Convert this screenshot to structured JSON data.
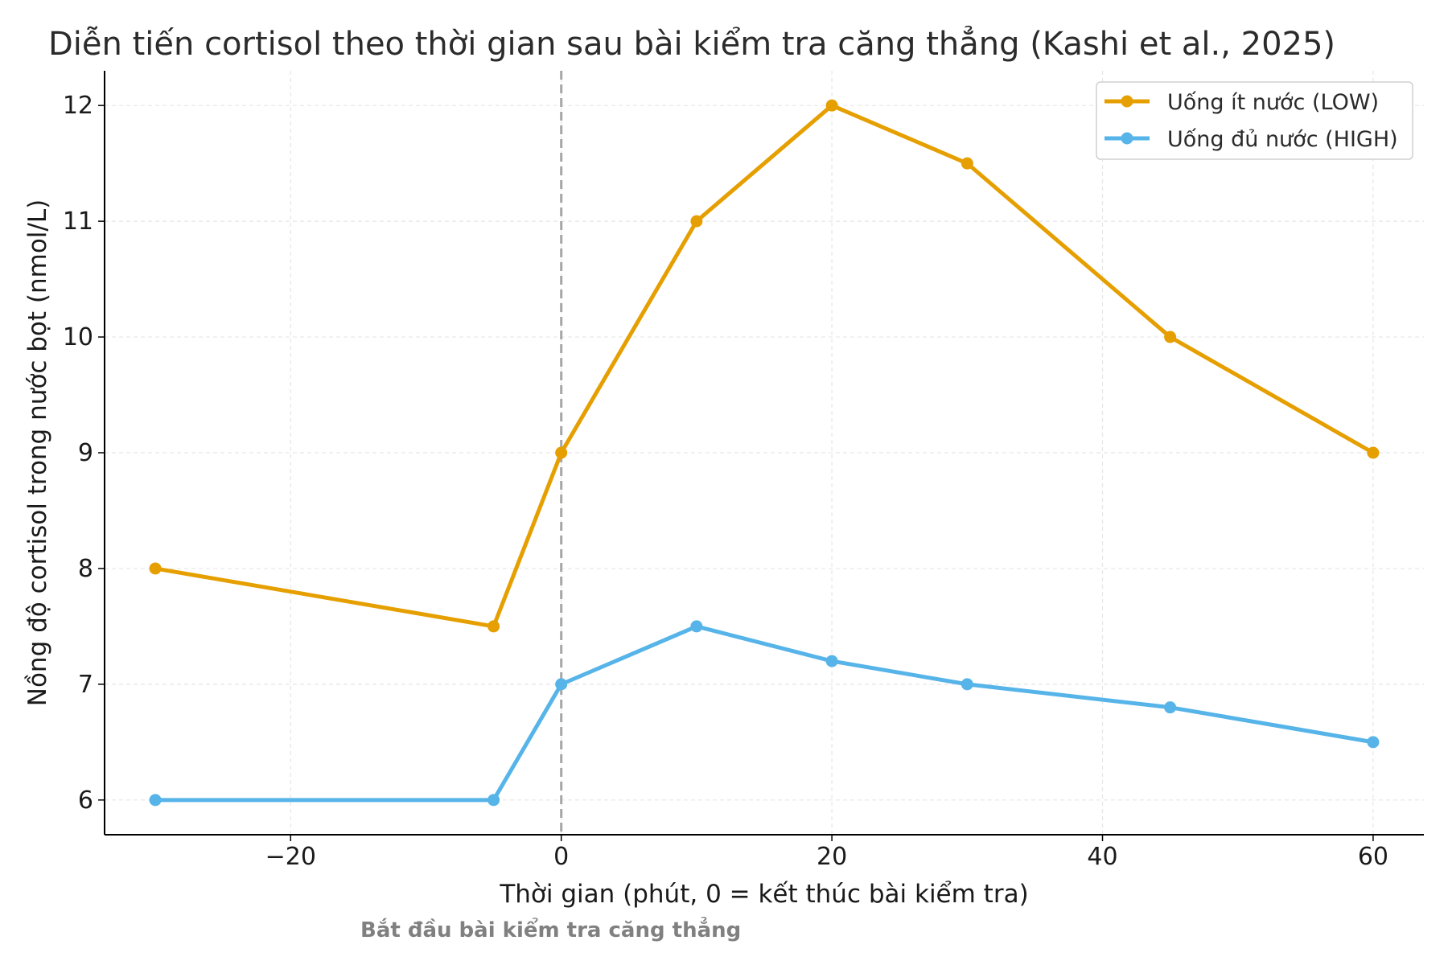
{
  "chart_data": {
    "type": "line",
    "title": "Diễn tiến cortisol theo thời gian sau bài kiểm tra căng thẳng (Kashi et al., 2025)",
    "xlabel": "Thời gian (phút, 0 = kết thúc bài kiểm tra)",
    "ylabel": "Nồng độ cortisol trong nước bọt (nmol/L)",
    "x": [
      -30,
      -5,
      0,
      10,
      20,
      30,
      45,
      60
    ],
    "series": [
      {
        "name": "Uống ít nước (LOW)",
        "color": "#E69F00",
        "values": [
          8,
          7.5,
          9,
          11,
          12,
          11.5,
          10,
          9
        ]
      },
      {
        "name": "Uống đủ nước (HIGH)",
        "color": "#56B4E9",
        "values": [
          6,
          6,
          7,
          7.5,
          7.2,
          7,
          6.8,
          6.5
        ]
      }
    ],
    "xlim": [
      -33.75,
      63.75
    ],
    "ylim": [
      5.7,
      12.3
    ],
    "xticks": [
      -20,
      0,
      20,
      40,
      60
    ],
    "xtick_labels": [
      "−20",
      "0",
      "20",
      "40",
      "60"
    ],
    "yticks": [
      6,
      7,
      8,
      9,
      10,
      11,
      12
    ],
    "ytick_labels": [
      "6",
      "7",
      "8",
      "9",
      "10",
      "11",
      "12"
    ],
    "grid": true,
    "legend_position": "top-right",
    "reference_line": {
      "x": 0,
      "style": "dashed",
      "color": "#a6a6a6"
    },
    "annotation": "Bắt đầu bài kiểm tra căng thẳng"
  }
}
